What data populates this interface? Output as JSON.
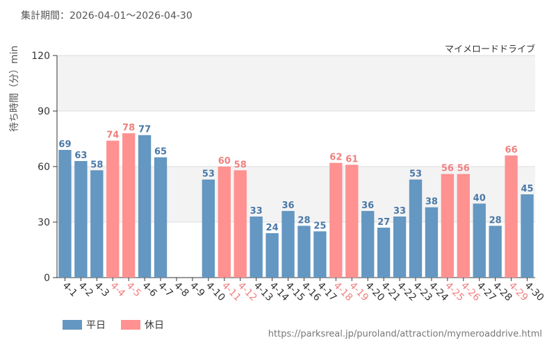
{
  "period": "集計期間：2026-04-01～2026-04-30",
  "attraction": "マイメロードドライブ",
  "source_url": "https://parksreal.jp/puroland/attraction/mymeroaddrive.html",
  "legend": {
    "weekday": "平日",
    "holiday": "休日"
  },
  "colors": {
    "weekday": "#6497c1",
    "holiday": "#ff9191",
    "holiday_label": "#f08080",
    "label": "#4a78a8"
  },
  "chart_data": {
    "type": "bar",
    "ylabel": "待ち時間（分）min",
    "ylim": [
      0,
      120
    ],
    "yticks": [
      0,
      30,
      60,
      90,
      120
    ],
    "categories": [
      "4-1",
      "4-2",
      "4-3",
      "4-4",
      "4-5",
      "4-6",
      "4-7",
      "4-8",
      "4-9",
      "4-10",
      "4-11",
      "4-12",
      "4-13",
      "4-14",
      "4-15",
      "4-16",
      "4-17",
      "4-18",
      "4-19",
      "4-20",
      "4-21",
      "4-22",
      "4-23",
      "4-24",
      "4-25",
      "4-26",
      "4-27",
      "4-28",
      "4-29",
      "4-30"
    ],
    "values": [
      69,
      63,
      58,
      74,
      78,
      77,
      65,
      null,
      null,
      53,
      60,
      58,
      33,
      24,
      36,
      28,
      25,
      62,
      61,
      36,
      27,
      33,
      53,
      38,
      56,
      56,
      40,
      28,
      66,
      45
    ],
    "day_type": [
      "weekday",
      "weekday",
      "weekday",
      "holiday",
      "holiday",
      "weekday",
      "weekday",
      "weekday",
      "weekday",
      "weekday",
      "holiday",
      "holiday",
      "weekday",
      "weekday",
      "weekday",
      "weekday",
      "weekday",
      "holiday",
      "holiday",
      "weekday",
      "weekday",
      "weekday",
      "weekday",
      "weekday",
      "holiday",
      "holiday",
      "weekday",
      "weekday",
      "holiday",
      "weekday"
    ]
  }
}
